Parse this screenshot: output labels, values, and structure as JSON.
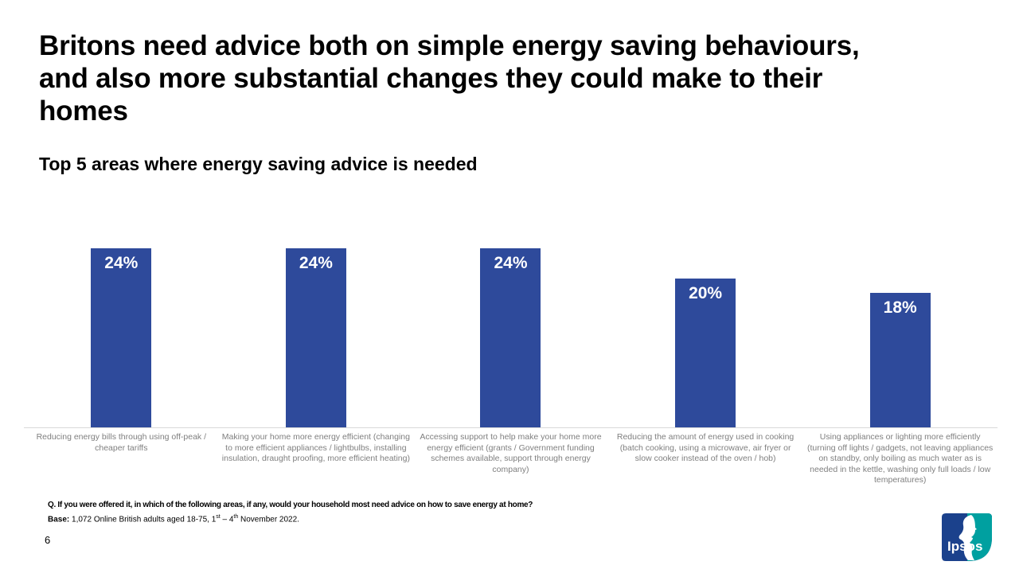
{
  "slide": {
    "title_lines": {
      "line1": "Britons need advice both on simple energy saving behaviours,",
      "line2": "and also more substantial changes they could make to their",
      "line3": "homes"
    },
    "subtitle": "Top 5 areas where energy saving advice is needed",
    "page_number": "6",
    "footnote_question": "Q. If you were offered it, in which of the following areas, if any, would your household most need advice on how to save energy at home?",
    "footnote_base": {
      "label": "Base:",
      "text1": " 1,072 Online British adults aged 18-75, 1",
      "sup1": "st",
      "text2": " – 4",
      "sup2": "th",
      "text3": " November 2022."
    },
    "logo_text": "Ipsos"
  },
  "colors": {
    "bar_blue": "#2E4A9B",
    "axis_gray": "#D9D9D9",
    "category_text_gray": "#7F7F7F",
    "logo_navy": "#1B418C",
    "logo_teal": "#00A0A0",
    "value_label_white": "#FFFFFF"
  },
  "chart_data": {
    "type": "bar",
    "title": "Top 5 areas where energy saving advice is needed",
    "categories": [
      "Reducing energy bills through using off-peak / cheaper tariffs",
      "Making your home more energy efficient (changing to more efficient appliances / lightbulbs, installing insulation, draught proofing, more efficient heating)",
      "Accessing support to help make your home more energy efficient (grants / Government funding schemes available, support through energy company)",
      "Reducing the amount of energy used in cooking (batch cooking, using a microwave, air fryer or slow cooker instead of the oven / hob)",
      "Using appliances or lighting more efficiently (turning off lights / gadgets, not leaving appliances on standby, only boiling as much water as is needed in the kettle, washing only full loads / low temperatures)"
    ],
    "values": [
      24,
      24,
      24,
      20,
      18
    ],
    "value_labels": [
      "24%",
      "24%",
      "24%",
      "20%",
      "18%"
    ],
    "xlabel": "",
    "ylabel": "",
    "ylim": [
      0,
      24
    ],
    "grid": false,
    "legend": false,
    "value_labels_position": "inside-top",
    "bar_color": "#2E4A9B",
    "axis_line_color": "#D9D9D9",
    "category_label_color": "#7F7F7F"
  }
}
